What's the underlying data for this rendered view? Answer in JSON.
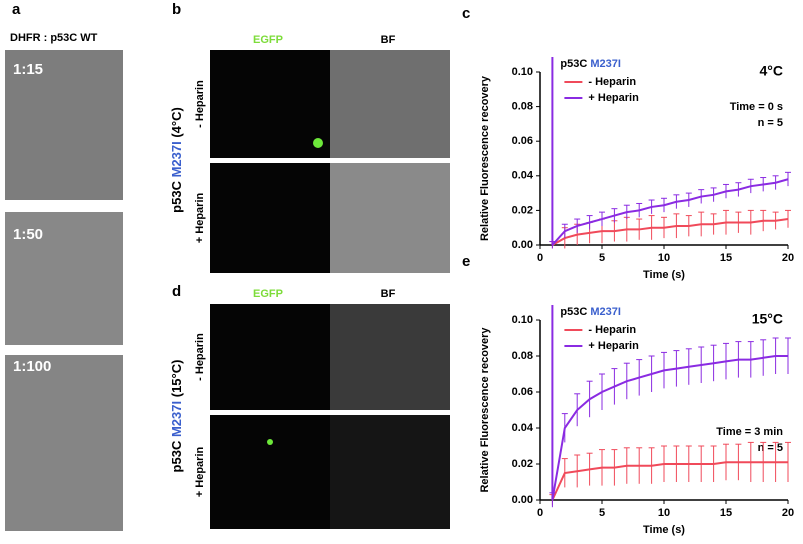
{
  "panels": {
    "a": {
      "letter": "a",
      "title": "DHFR : p53C WT",
      "images": [
        "1:15",
        "1:50",
        "1:100"
      ]
    },
    "b": {
      "letter": "b",
      "col_labels": [
        "EGFP",
        "BF"
      ],
      "row_labels": [
        "- Heparin",
        "+ Heparin"
      ],
      "side_prefix": "p53C",
      "side_mutation": "M237I",
      "side_suffix": "(4°C)"
    },
    "d": {
      "letter": "d",
      "col_labels": [
        "EGFP",
        "BF"
      ],
      "row_labels": [
        "- Heparin",
        "+ Heparin"
      ],
      "side_prefix": "p53C",
      "side_mutation": "M237I",
      "side_suffix": "(15°C)"
    }
  },
  "chart_data": [
    {
      "type": "line",
      "panel_label": "c",
      "label_prefix": "p53C",
      "label_mutation": "M237I",
      "temperature": "4°C",
      "notes": [
        "Time = 0 s",
        "n = 5"
      ],
      "x_label": "Time (s)",
      "y_label": "Relative Fluorescence recovery",
      "xlim": [
        0,
        20
      ],
      "xticks": [
        0,
        5,
        10,
        15,
        20
      ],
      "ylim": [
        0,
        0.1
      ],
      "yticks": [
        {
          "value": 0,
          "label": "0.00"
        },
        0.02,
        0.04,
        0.06,
        0.08,
        {
          "value": 0.1,
          "label": "0.10"
        }
      ],
      "vline_x": 1,
      "vline_color": "#8a2be2",
      "legend": "upper left",
      "x": [
        1,
        2,
        3,
        4,
        5,
        6,
        7,
        8,
        9,
        10,
        11,
        12,
        13,
        14,
        15,
        16,
        17,
        18,
        19,
        20
      ],
      "series": [
        {
          "name": "- Heparin",
          "color": "#f04a5a",
          "values": [
            0,
            0.004,
            0.006,
            0.007,
            0.008,
            0.008,
            0.009,
            0.009,
            0.01,
            0.01,
            0.011,
            0.011,
            0.012,
            0.012,
            0.013,
            0.013,
            0.013,
            0.014,
            0.014,
            0.015
          ],
          "errors": [
            0.002,
            0.006,
            0.006,
            0.006,
            0.007,
            0.006,
            0.007,
            0.006,
            0.007,
            0.006,
            0.007,
            0.006,
            0.007,
            0.006,
            0.007,
            0.006,
            0.007,
            0.006,
            0.005,
            0.005
          ]
        },
        {
          "name": "+ Heparin",
          "color": "#8a2be2",
          "values": [
            0,
            0.008,
            0.011,
            0.013,
            0.015,
            0.017,
            0.019,
            0.02,
            0.022,
            0.023,
            0.025,
            0.026,
            0.028,
            0.029,
            0.031,
            0.032,
            0.034,
            0.035,
            0.036,
            0.038
          ],
          "errors": [
            0.002,
            0.004,
            0.004,
            0.004,
            0.004,
            0.004,
            0.004,
            0.004,
            0.004,
            0.004,
            0.004,
            0.004,
            0.004,
            0.004,
            0.004,
            0.004,
            0.004,
            0.004,
            0.004,
            0.004
          ]
        }
      ]
    },
    {
      "type": "line",
      "panel_label": "e",
      "label_prefix": "p53C",
      "label_mutation": "M237I",
      "temperature": "15°C",
      "notes": [
        "Time = 3 min",
        "n = 5"
      ],
      "x_label": "Time (s)",
      "y_label": "Relative Fluorescence recovery",
      "xlim": [
        0,
        20
      ],
      "xticks": [
        0,
        5,
        10,
        15,
        20
      ],
      "ylim": [
        0,
        0.1
      ],
      "yticks": [
        {
          "value": 0,
          "label": "0.00"
        },
        0.02,
        0.04,
        0.06,
        0.08,
        {
          "value": 0.1,
          "label": "0.10"
        }
      ],
      "vline_x": 1,
      "vline_color": "#8a2be2",
      "legend": "upper left",
      "x": [
        1,
        2,
        3,
        4,
        5,
        6,
        7,
        8,
        9,
        10,
        11,
        12,
        13,
        14,
        15,
        16,
        17,
        18,
        19,
        20
      ],
      "series": [
        {
          "name": "- Heparin",
          "color": "#f04a5a",
          "values": [
            0,
            0.015,
            0.016,
            0.017,
            0.018,
            0.018,
            0.019,
            0.019,
            0.019,
            0.02,
            0.02,
            0.02,
            0.02,
            0.02,
            0.021,
            0.021,
            0.021,
            0.021,
            0.021,
            0.021
          ],
          "errors": [
            0.003,
            0.008,
            0.009,
            0.009,
            0.01,
            0.01,
            0.01,
            0.01,
            0.01,
            0.01,
            0.01,
            0.01,
            0.01,
            0.01,
            0.01,
            0.01,
            0.011,
            0.011,
            0.011,
            0.011
          ]
        },
        {
          "name": "+ Heparin",
          "color": "#8a2be2",
          "values": [
            0,
            0.04,
            0.05,
            0.056,
            0.06,
            0.063,
            0.066,
            0.068,
            0.07,
            0.072,
            0.073,
            0.074,
            0.075,
            0.076,
            0.077,
            0.078,
            0.078,
            0.079,
            0.08,
            0.08
          ],
          "errors": [
            0.004,
            0.008,
            0.009,
            0.01,
            0.01,
            0.01,
            0.01,
            0.01,
            0.01,
            0.01,
            0.01,
            0.01,
            0.01,
            0.01,
            0.01,
            0.01,
            0.01,
            0.01,
            0.01,
            0.01
          ]
        }
      ]
    }
  ]
}
